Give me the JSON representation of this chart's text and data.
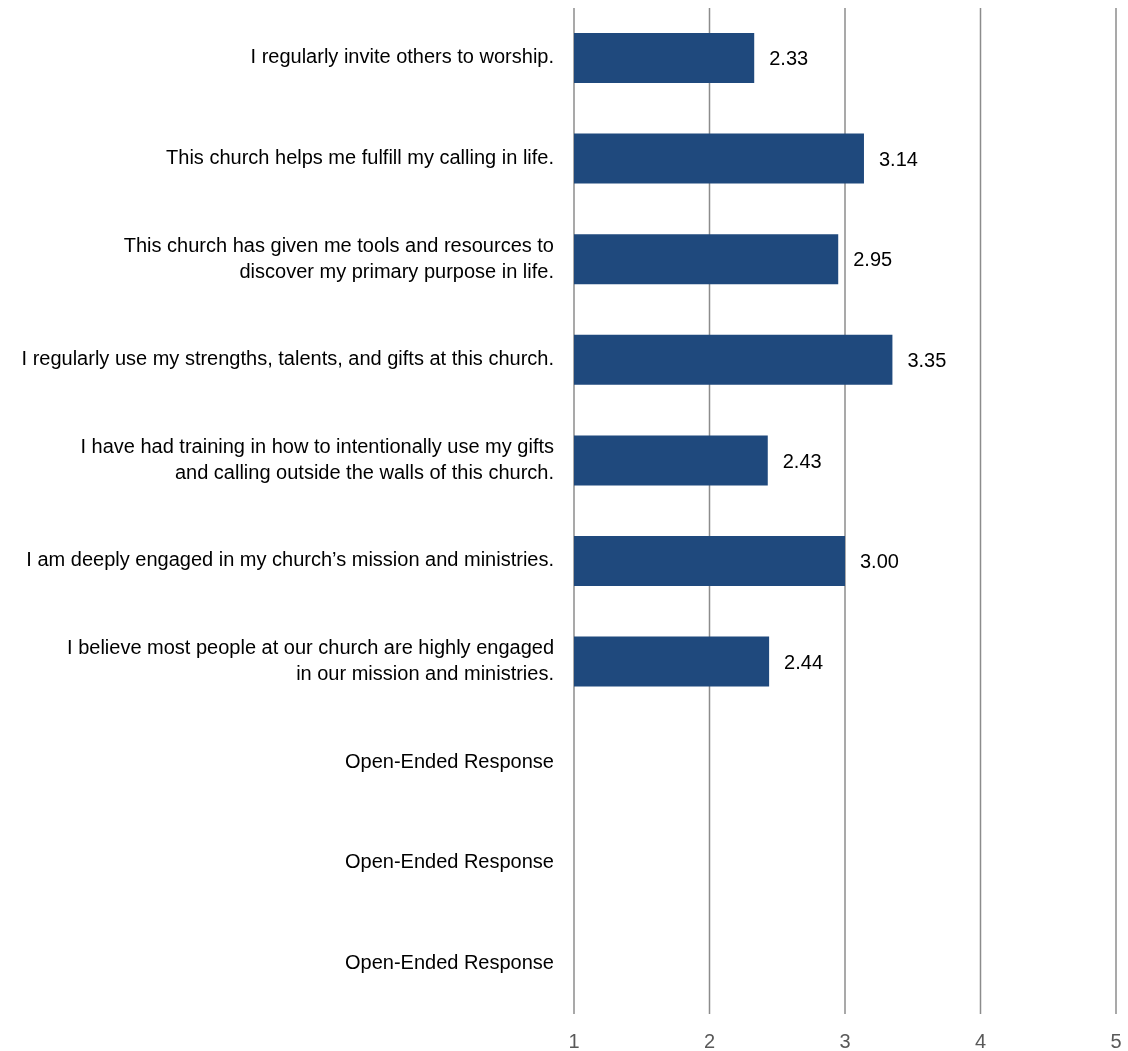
{
  "chart_data": {
    "type": "bar",
    "orientation": "horizontal",
    "categories": [
      "I regularly invite others to worship.",
      "This church helps me fulfill my calling in life.",
      "This church has given me tools and resources to discover my primary purpose in life.",
      "I regularly use my strengths, talents, and gifts at this church.",
      "I have had training in how to intentionally use my gifts and calling outside the walls of this church.",
      "I am deeply engaged in my church’s mission and ministries.",
      "I believe most people at our church are highly engaged in our mission and ministries.",
      "Open-Ended Response",
      "Open-Ended Response",
      "Open-Ended Response"
    ],
    "values": [
      2.33,
      3.14,
      2.95,
      3.35,
      2.43,
      3.0,
      2.44,
      null,
      null,
      null
    ],
    "value_labels": [
      "2.33",
      "3.14",
      "2.95",
      "3.35",
      "2.43",
      "3.00",
      "2.44",
      null,
      null,
      null
    ],
    "color": "#1f497d",
    "xlim": [
      1,
      5
    ],
    "xticks": [
      1,
      2,
      3,
      4,
      5
    ],
    "grid": "x"
  }
}
